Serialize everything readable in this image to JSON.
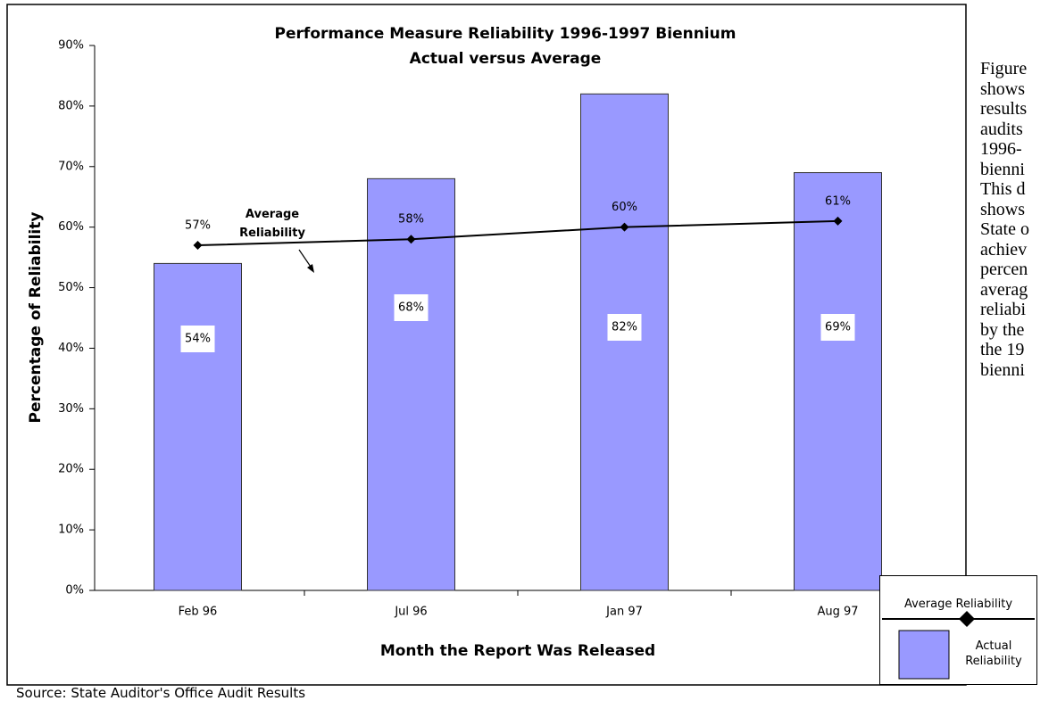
{
  "chart_data": {
    "type": "bar",
    "title": "Performance Measure Reliability 1996-1997 Biennium",
    "subtitle": "Actual versus Average",
    "x_label": "Month the Report Was Released",
    "y_label": "Percentage of Reliability",
    "categories": [
      "Feb 96",
      "Jul 96",
      "Jan 97",
      "Aug 97"
    ],
    "series": [
      {
        "name": "Actual Reliability",
        "type": "bar",
        "color": "#9999ff",
        "values": [
          54,
          68,
          82,
          69
        ],
        "value_labels": [
          "54%",
          "68%",
          "82%",
          "69%"
        ]
      },
      {
        "name": "Average Reliability",
        "type": "line",
        "color": "#000000",
        "values": [
          57,
          58,
          60,
          61
        ],
        "value_labels": [
          "57%",
          "58%",
          "60%",
          "61%"
        ]
      }
    ],
    "ylim": [
      0,
      90
    ],
    "yticks": [
      {
        "value": 0,
        "label": "0%"
      },
      {
        "value": 10,
        "label": "10%"
      },
      {
        "value": 20,
        "label": "20%"
      },
      {
        "value": 30,
        "label": "30%"
      },
      {
        "value": 40,
        "label": "40%"
      },
      {
        "value": 50,
        "label": "50%"
      },
      {
        "value": 60,
        "label": "60%"
      },
      {
        "value": 70,
        "label": "70%"
      },
      {
        "value": 80,
        "label": "80%"
      },
      {
        "value": 90,
        "label": "90%"
      }
    ],
    "annotation": "Average Reliability",
    "source": "Source: State Auditor's Office Audit Results"
  },
  "side_text": [
    "Figure",
    "shows",
    "results",
    "audits",
    "1996-",
    "bienni",
    "This d",
    "shows",
    "State o",
    "achiev",
    "percen",
    "averag",
    "reliabi",
    "by the",
    "the 19",
    "bienni"
  ]
}
